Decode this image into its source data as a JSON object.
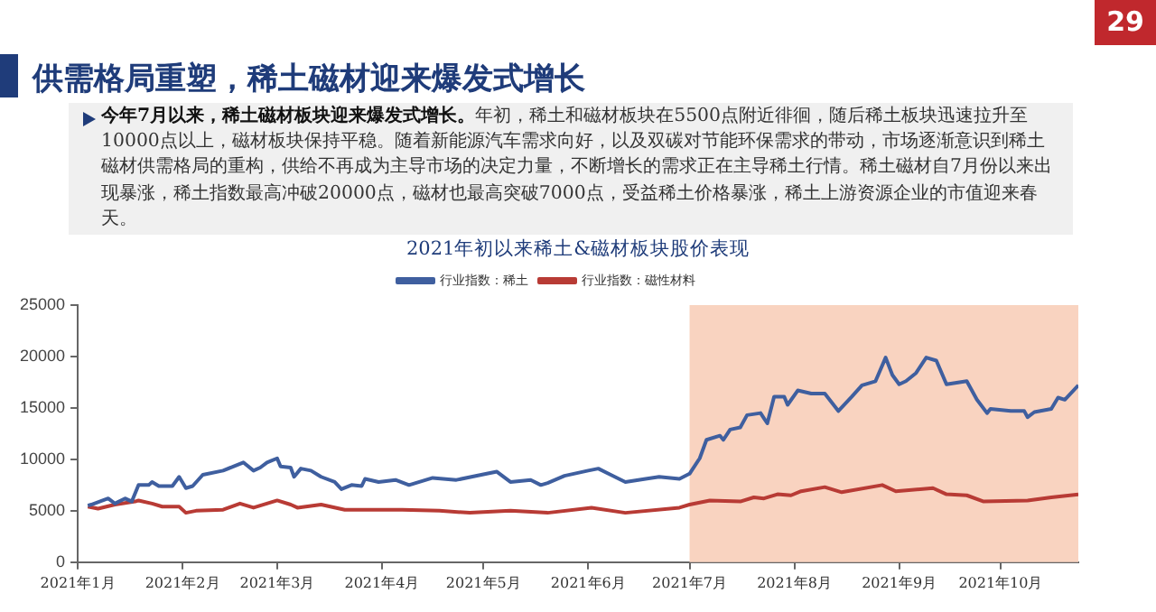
{
  "chart_data": {
    "type": "line",
    "title": "2021年初以来稀土&磁材板块股价表现",
    "annotations": [
      "供需格局重塑，稀土磁材迎来爆发式增长",
      "今年7月以来，稀土磁材板块迎来爆发式增长。",
      "年初，稀土和磁材板块在5500点附近徘徊，随后稀土板块迅速拉升至10000点以上，磁材板块保持平稳。随着新能源汽车需求向好，以及双碳对节能环保需求的带动，市场逐渐意识到稀土磁材供需格局的重构，供给不再成为主导市场的决定力量，不断增长的需求正在主导稀土行情。稀土磁材自7月份以来出现暴涨，稀土指数最高冲破20000点，磁材也最高突破7000点，受益稀土价格暴涨，稀土上游资源企业的市值迎来春天。",
      "29"
    ],
    "series": [
      {
        "name": "行业指数：稀土",
        "color": "#3f5f9f",
        "x": [
          "2021-01-04",
          "2021-01-05",
          "2021-01-10",
          "2021-01-12",
          "2021-01-15",
          "2021-01-17",
          "2021-01-19",
          "2021-01-22",
          "2021-01-23",
          "2021-01-25",
          "2021-01-29",
          "2021-01-31",
          "2021-02-02",
          "2021-02-04",
          "2021-02-07",
          "2021-02-13",
          "2021-02-16",
          "2021-02-19",
          "2021-02-22",
          "2021-02-24",
          "2021-02-26",
          "2021-03-01",
          "2021-03-02",
          "2021-03-05",
          "2021-03-06",
          "2021-03-08",
          "2021-03-11",
          "2021-03-14",
          "2021-03-18",
          "2021-03-20",
          "2021-03-23",
          "2021-03-26",
          "2021-03-27",
          "2021-03-31",
          "2021-04-05",
          "2021-04-09",
          "2021-04-16",
          "2021-04-23",
          "2021-05-02",
          "2021-05-05",
          "2021-05-09",
          "2021-05-15",
          "2021-05-18",
          "2021-05-20",
          "2021-05-25",
          "2021-06-01",
          "2021-06-04",
          "2021-06-07",
          "2021-06-12",
          "2021-06-18",
          "2021-06-22",
          "2021-06-28",
          "2021-07-01",
          "2021-07-04",
          "2021-07-06",
          "2021-07-10",
          "2021-07-11",
          "2021-07-13",
          "2021-07-16",
          "2021-07-18",
          "2021-07-22",
          "2021-07-23",
          "2021-07-24",
          "2021-07-26",
          "2021-07-29",
          "2021-07-30",
          "2021-08-02",
          "2021-08-06",
          "2021-08-10",
          "2021-08-14",
          "2021-08-18",
          "2021-08-21",
          "2021-08-25",
          "2021-08-28",
          "2021-08-30",
          "2021-09-01",
          "2021-09-03",
          "2021-09-06",
          "2021-09-09",
          "2021-09-12",
          "2021-09-15",
          "2021-09-21",
          "2021-09-24",
          "2021-09-27",
          "2021-09-28",
          "2021-10-04",
          "2021-10-08",
          "2021-10-09",
          "2021-10-11",
          "2021-10-16",
          "2021-10-18",
          "2021-10-20",
          "2021-10-24"
        ],
        "values": [
          5500,
          5600,
          6200,
          5700,
          6200,
          5900,
          7500,
          7500,
          7800,
          7400,
          7400,
          8300,
          7200,
          7400,
          8500,
          8900,
          9300,
          9700,
          8900,
          9200,
          9700,
          10100,
          9300,
          9200,
          8300,
          9100,
          8900,
          8300,
          7800,
          7100,
          7500,
          7400,
          8100,
          7800,
          8000,
          7500,
          8200,
          8000,
          8600,
          8800,
          7800,
          8000,
          7500,
          7700,
          8400,
          8900,
          9100,
          8600,
          7800,
          8100,
          8300,
          8100,
          8600,
          10100,
          11900,
          12300,
          11900,
          12900,
          13100,
          14300,
          14500,
          14000,
          13500,
          16100,
          16100,
          15300,
          16700,
          16400,
          16400,
          14700,
          16100,
          17200,
          17600,
          19900,
          18200,
          17300,
          17600,
          18400,
          19900,
          19600,
          17300,
          17600,
          15800,
          14500,
          14900,
          14700,
          14700,
          14100,
          14600,
          14900,
          16000,
          15800,
          17200
        ]
      },
      {
        "name": "行业指数：磁性材料",
        "color": "#b83b35",
        "x": [
          "2021-01-04",
          "2021-01-07",
          "2021-01-12",
          "2021-01-18",
          "2021-01-19",
          "2021-01-23",
          "2021-01-26",
          "2021-01-31",
          "2021-02-02",
          "2021-02-05",
          "2021-02-13",
          "2021-02-18",
          "2021-02-22",
          "2021-03-01",
          "2021-03-05",
          "2021-03-07",
          "2021-03-14",
          "2021-03-21",
          "2021-03-29",
          "2021-04-07",
          "2021-04-18",
          "2021-04-27",
          "2021-05-09",
          "2021-05-20",
          "2021-06-02",
          "2021-06-12",
          "2021-06-28",
          "2021-07-01",
          "2021-07-07",
          "2021-07-16",
          "2021-07-20",
          "2021-07-23",
          "2021-07-27",
          "2021-07-31",
          "2021-08-03",
          "2021-08-10",
          "2021-08-15",
          "2021-08-27",
          "2021-08-31",
          "2021-09-11",
          "2021-09-15",
          "2021-09-21",
          "2021-09-26",
          "2021-10-09",
          "2021-10-16",
          "2021-10-24"
        ],
        "values": [
          5400,
          5200,
          5600,
          5900,
          6000,
          5700,
          5400,
          5400,
          4800,
          5000,
          5100,
          5700,
          5300,
          6000,
          5600,
          5300,
          5600,
          5100,
          5100,
          5100,
          5000,
          4800,
          5000,
          4800,
          5300,
          4800,
          5300,
          5600,
          6000,
          5900,
          6300,
          6200,
          6600,
          6500,
          6900,
          7300,
          6800,
          7500,
          6900,
          7200,
          6600,
          6500,
          5900,
          6000,
          6300,
          6600
        ]
      }
    ],
    "xlim": [
      "2021-01-01",
      "2021-10-24"
    ],
    "xticks": [
      {
        "value": "2021-01-01",
        "label": "2021年1月"
      },
      {
        "value": "2021-02-01",
        "label": "2021年2月"
      },
      {
        "value": "2021-03-01",
        "label": "2021年3月"
      },
      {
        "value": "2021-04-01",
        "label": "2021年4月"
      },
      {
        "value": "2021-05-01",
        "label": "2021年5月"
      },
      {
        "value": "2021-06-01",
        "label": "2021年6月"
      },
      {
        "value": "2021-07-01",
        "label": "2021年7月"
      },
      {
        "value": "2021-08-01",
        "label": "2021年8月"
      },
      {
        "value": "2021-09-01",
        "label": "2021年9月"
      },
      {
        "value": "2021-10-01",
        "label": "2021年10月"
      }
    ],
    "ylim": [
      0,
      25000
    ],
    "yticks": [
      0,
      5000,
      10000,
      15000,
      20000,
      25000
    ],
    "bands": [
      {
        "axis": "x",
        "from": "2021-07-01",
        "to": "2021-10-24",
        "color": "#f9d3c0"
      }
    ],
    "grid": false,
    "legend": "top",
    "marker": "none",
    "line_style": "solid"
  }
}
